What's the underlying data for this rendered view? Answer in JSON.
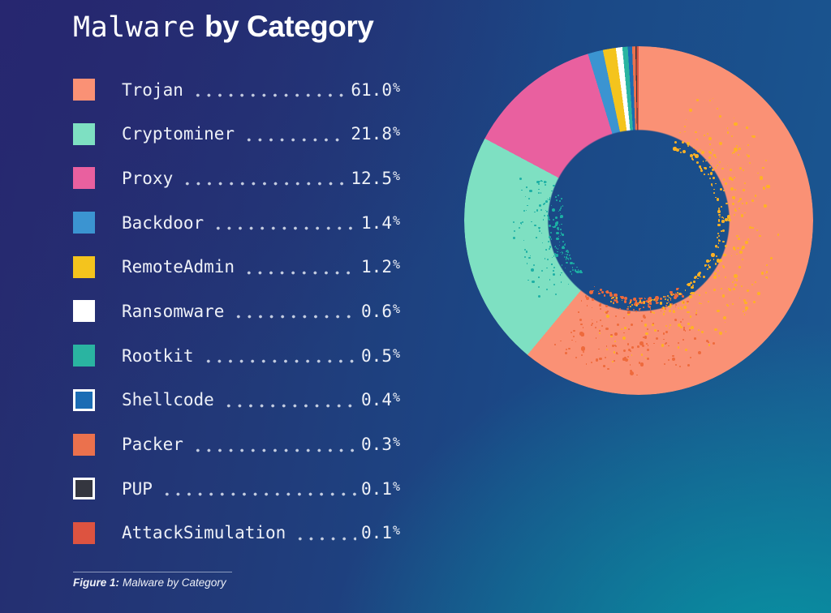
{
  "page": {
    "title_mono": "Malware",
    "title_bold": "by Category",
    "caption_label": "Figure 1:",
    "caption_text": "Malware by Category"
  },
  "colors": {
    "background_left_indigo": "#262A6E",
    "background_mid_blue": "#1B4886",
    "background_top_right_blue": "#1A508C",
    "background_bottom_right_teal": "#0797A2",
    "text": "#EDF0F7",
    "leader_dots": "#E0E6F2"
  },
  "chart_data": {
    "type": "pie",
    "variant": "donut",
    "title": "Malware by Category",
    "start_angle_deg": 0,
    "direction": "clockwise",
    "legend_position": "left",
    "unit": "%",
    "categories": [
      "Trojan",
      "Cryptominer",
      "Proxy",
      "Backdoor",
      "RemoteAdmin",
      "Ransomware",
      "Rootkit",
      "Shellcode",
      "Packer",
      "PUP",
      "AttackSimulation"
    ],
    "values": [
      61.0,
      21.8,
      12.5,
      1.4,
      1.2,
      0.6,
      0.5,
      0.4,
      0.3,
      0.1,
      0.1
    ],
    "colors": [
      "#FA9175",
      "#7EE0C2",
      "#E9609F",
      "#3B94D1",
      "#F4C41D",
      "#FFFFFF",
      "#2AB4A1",
      "#1B6CB4",
      "#EB714D",
      "#34363F",
      "#DD5340"
    ],
    "swatch_border_items": [
      "Shellcode",
      "PUP"
    ],
    "speckle_colors": {
      "trojan_yellow": "#FFB224",
      "trojan_orange": "#EE6A3C",
      "cryptominer_teal": "#1CAFA4"
    }
  }
}
